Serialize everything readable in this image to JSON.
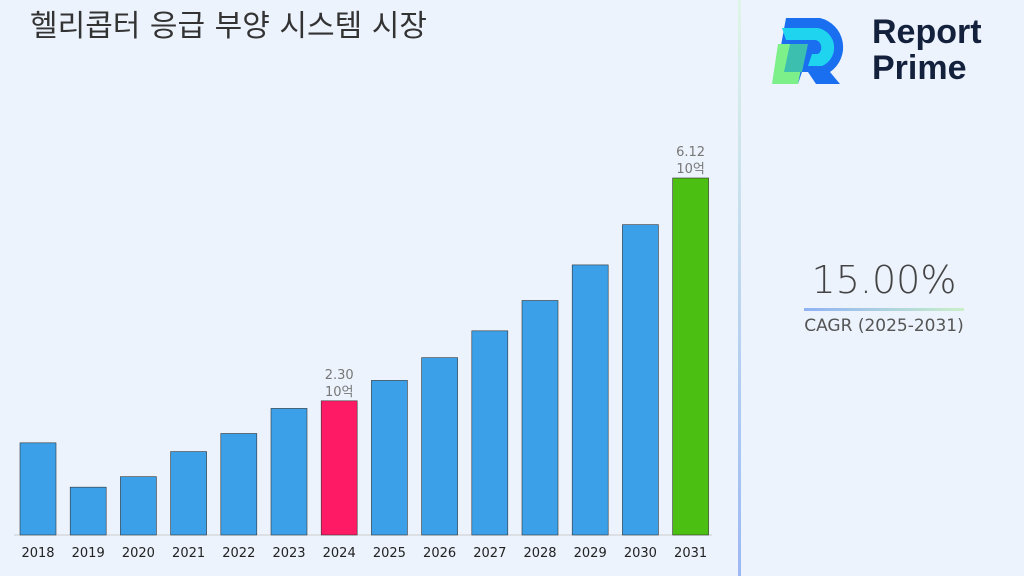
{
  "title": "헬리콥터 응급 부양 시스템 시장",
  "logo": {
    "line1": "Report",
    "line2": "Prime"
  },
  "cagr": {
    "value": "15.00%",
    "label": "CAGR (2025-2031)"
  },
  "colors": {
    "history": "#3ba0e8",
    "base_year": "#ff1a66",
    "final_year": "#4bbf12"
  },
  "chart_data": {
    "type": "bar",
    "categories": [
      "2018",
      "2019",
      "2020",
      "2021",
      "2022",
      "2023",
      "2024",
      "2025",
      "2026",
      "2027",
      "2028",
      "2029",
      "2030",
      "2031"
    ],
    "values": [
      1.58,
      0.82,
      1.0,
      1.43,
      1.74,
      2.17,
      2.3,
      2.65,
      3.04,
      3.5,
      4.02,
      4.63,
      5.32,
      6.12
    ],
    "unit": "10억",
    "data_labels": {
      "2024": {
        "value": "2.30",
        "unit": "10억"
      },
      "2031": {
        "value": "6.12",
        "unit": "10억"
      }
    },
    "highlight": {
      "2024": "base_year",
      "2031": "final_year"
    },
    "grid": false,
    "xlabel": "",
    "ylabel": ""
  }
}
